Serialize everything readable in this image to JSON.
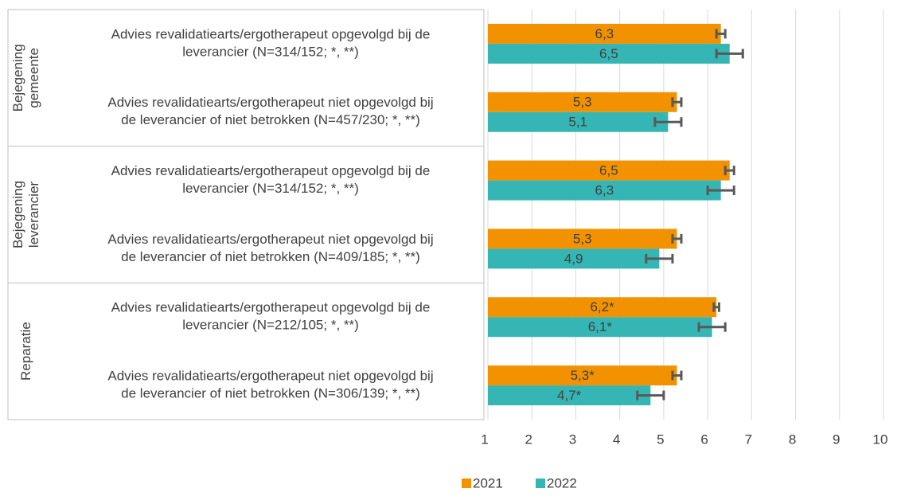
{
  "chart_data": {
    "type": "bar",
    "orientation": "horizontal",
    "groups": [
      {
        "label": [
          "Bejegening",
          "gemeente"
        ],
        "size": 2
      },
      {
        "label": [
          "Bejegening",
          "leverancier"
        ],
        "size": 2
      },
      {
        "label": [
          "Reparatie"
        ],
        "size": 2
      }
    ],
    "categories": [
      [
        "Advies revalidatiearts/ergotherapeut opgevolgd bij de",
        "leverancier (N=314/152; *, **)"
      ],
      [
        "Advies revalidatiearts/ergotherapeut niet opgevolgd bij",
        "de leverancier of niet betrokken (N=457/230; *, **)"
      ],
      [
        "Advies revalidatiearts/ergotherapeut opgevolgd bij de",
        "leverancier (N=314/152; *, **)"
      ],
      [
        "Advies revalidatiearts/ergotherapeut niet opgevolgd bij",
        "de leverancier of niet betrokken (N=409/185; *, **)"
      ],
      [
        "Advies revalidatiearts/ergotherapeut opgevolgd bij de",
        "leverancier (N=212/105; *, **)"
      ],
      [
        "Advies revalidatiearts/ergotherapeut niet opgevolgd bij",
        "de leverancier of niet betrokken (N=306/139; *, **)"
      ]
    ],
    "series": [
      {
        "name": "2021",
        "color": "#f39200",
        "values": [
          6.3,
          5.3,
          6.5,
          5.3,
          6.2,
          5.3
        ],
        "value_labels": [
          "6,3",
          "5,3",
          "6,5",
          "5,3",
          "6,2*",
          "5,3*"
        ],
        "errors": [
          0.1,
          0.1,
          0.1,
          0.1,
          0.06,
          0.1
        ]
      },
      {
        "name": "2022",
        "color": "#35b6b4",
        "values": [
          6.5,
          5.1,
          6.3,
          4.9,
          6.1,
          4.7
        ],
        "value_labels": [
          "6,5",
          "5,1",
          "6,3",
          "4,9",
          "6,1*",
          "4,7*"
        ],
        "errors": [
          0.3,
          0.3,
          0.3,
          0.3,
          0.3,
          0.3
        ]
      }
    ],
    "xlim": [
      1,
      10
    ],
    "xticks": [
      1,
      2,
      3,
      4,
      5,
      6,
      7,
      8,
      9,
      10
    ],
    "grid": true,
    "legend": "bottom"
  }
}
